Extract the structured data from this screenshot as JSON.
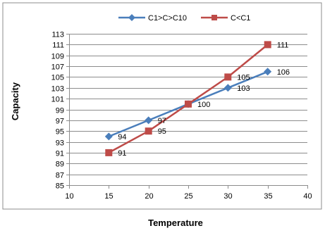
{
  "chart_data": {
    "type": "line",
    "x": [
      15,
      20,
      25,
      30,
      35
    ],
    "series": [
      {
        "name": "C1>C>C10",
        "color": "#4a7ebb",
        "marker": "diamond",
        "values": [
          94,
          97,
          100,
          103,
          106
        ],
        "labels": [
          "94",
          "97",
          "100",
          "103",
          "106"
        ]
      },
      {
        "name": "C<C1",
        "color": "#be4b48",
        "marker": "square",
        "values": [
          91,
          95,
          100,
          105,
          111
        ],
        "labels": [
          "91",
          "95",
          "",
          "105",
          "111"
        ]
      }
    ],
    "title": "",
    "xlabel": "Temperature",
    "ylabel": "Capacity",
    "xlim": [
      10,
      40
    ],
    "ylim": [
      85,
      113
    ],
    "xticks": [
      "10",
      "15",
      "20",
      "25",
      "30",
      "35",
      "40"
    ],
    "yticks": [
      "85",
      "87",
      "89",
      "91",
      "93",
      "95",
      "97",
      "99",
      "101",
      "103",
      "105",
      "107",
      "109",
      "111",
      "113"
    ],
    "grid": "horizontal",
    "legend": "top"
  }
}
